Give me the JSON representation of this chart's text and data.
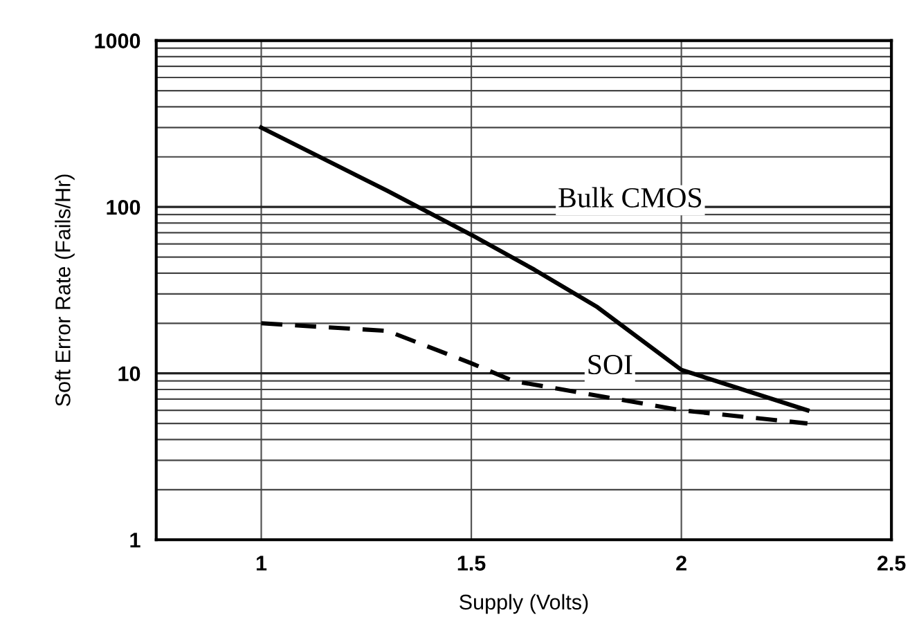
{
  "chart_data": {
    "type": "line",
    "xlabel": "Supply (Volts)",
    "ylabel": "Soft Error Rate (Fails/Hr)",
    "series": [
      {
        "name": "Bulk CMOS",
        "color": "#000000",
        "line_style": "solid",
        "x": [
          1,
          1.3,
          1.5,
          1.65,
          1.8,
          2,
          2.3
        ],
        "values": [
          300,
          125,
          68,
          42,
          25,
          10.5,
          6
        ]
      },
      {
        "name": "SOI",
        "color": "#000000",
        "line_style": "dashed",
        "x": [
          1,
          1.3,
          1.5,
          1.6,
          2,
          2.3
        ],
        "values": [
          20,
          18,
          11.5,
          9,
          6,
          5
        ]
      }
    ],
    "log": "y",
    "xlim": [
      0.75,
      2.5
    ],
    "ylim": [
      1,
      1000
    ],
    "xticks": [
      1,
      1.5,
      2,
      2.5
    ],
    "yticks": [
      1,
      10,
      100,
      1000
    ],
    "grid": true,
    "legend": false
  }
}
